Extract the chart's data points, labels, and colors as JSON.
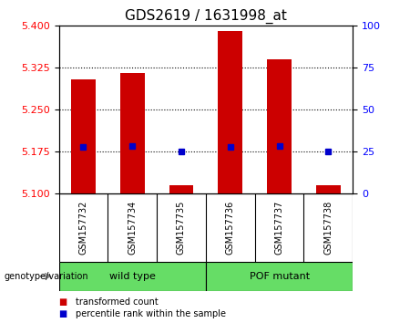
{
  "title": "GDS2619 / 1631998_at",
  "samples": [
    "GSM157732",
    "GSM157734",
    "GSM157735",
    "GSM157736",
    "GSM157737",
    "GSM157738"
  ],
  "red_bar_values": [
    5.305,
    5.315,
    5.115,
    5.39,
    5.34,
    5.115
  ],
  "blue_dot_values": [
    5.183,
    5.186,
    5.175,
    5.183,
    5.186,
    5.175
  ],
  "y_min": 5.1,
  "y_max": 5.4,
  "y_ticks_left": [
    5.1,
    5.175,
    5.25,
    5.325,
    5.4
  ],
  "y_ticks_right": [
    0,
    25,
    50,
    75,
    100
  ],
  "groups": [
    {
      "label": "wild type",
      "indices": [
        0,
        1,
        2
      ]
    },
    {
      "label": "POF mutant",
      "indices": [
        3,
        4,
        5
      ]
    }
  ],
  "bar_color": "#CC0000",
  "dot_color": "#0000CC",
  "bar_width": 0.5,
  "baseline": 5.1,
  "background_label": "#C8C8C8",
  "group_color": "#66DD66",
  "legend_red_label": "transformed count",
  "legend_blue_label": "percentile rank within the sample",
  "genotype_label": "genotype/variation",
  "title_fontsize": 11,
  "tick_fontsize": 8,
  "label_fontsize": 7,
  "group_fontsize": 8
}
